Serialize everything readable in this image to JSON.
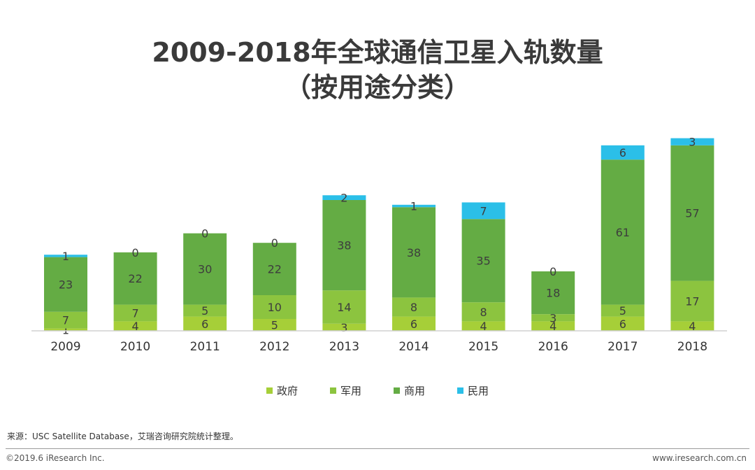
{
  "title_line1": "2009-2018年全球通信卫星入轨数量",
  "title_line2": "（按用途分类）",
  "chart_data": {
    "type": "bar",
    "stacked": true,
    "categories": [
      "2009",
      "2010",
      "2011",
      "2012",
      "2013",
      "2014",
      "2015",
      "2016",
      "2017",
      "2018"
    ],
    "series": [
      {
        "name": "政府",
        "color": "#a6cf38",
        "values": [
          1,
          4,
          6,
          5,
          3,
          6,
          4,
          4,
          6,
          4
        ]
      },
      {
        "name": "军用",
        "color": "#8cc43f",
        "values": [
          7,
          7,
          5,
          10,
          14,
          8,
          8,
          3,
          5,
          17
        ]
      },
      {
        "name": "商用",
        "color": "#64ac44",
        "values": [
          23,
          22,
          30,
          22,
          38,
          38,
          35,
          18,
          61,
          57
        ]
      },
      {
        "name": "民用",
        "color": "#2bbfe8",
        "values": [
          1,
          0,
          0,
          0,
          2,
          1,
          7,
          0,
          6,
          3
        ]
      }
    ],
    "legend_position": "bottom",
    "grid": false
  },
  "source": "来源：USC Satellite Database，艾瑞咨询研究院统计整理。",
  "copyright": "©2019.6 iResearch Inc.",
  "website": "www.iresearch.com.cn"
}
